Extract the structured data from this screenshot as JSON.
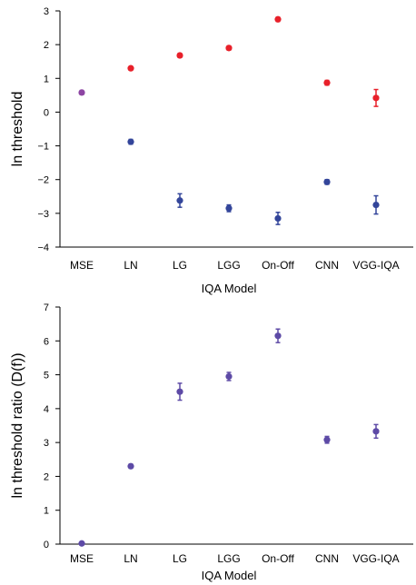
{
  "chart_data": [
    {
      "type": "scatter",
      "categories": [
        "MSE",
        "LN",
        "LG",
        "LGG",
        "On-Off",
        "CNN",
        "VGG-IQA"
      ],
      "xlabel": "IQA Model",
      "ylabel": "ln threshold",
      "ylim": [
        -4,
        3
      ],
      "yticks": [
        3,
        2,
        1,
        0,
        -1,
        -2,
        -3,
        -4
      ],
      "grid": false,
      "series": [
        {
          "color": "#e8202a",
          "points": [
            {
              "category": "LN",
              "value": 1.3,
              "err": 0.05
            },
            {
              "category": "LG",
              "value": 1.68,
              "err": 0.06
            },
            {
              "category": "LGG",
              "value": 1.9,
              "err": 0.06
            },
            {
              "category": "On-Off",
              "value": 2.75,
              "err": 0.06
            },
            {
              "category": "CNN",
              "value": 0.87,
              "err": 0.07
            },
            {
              "category": "VGG-IQA",
              "value": 0.42,
              "err": 0.25
            }
          ]
        },
        {
          "color": "#33459a",
          "points": [
            {
              "category": "LN",
              "value": -0.88,
              "err": 0.07
            },
            {
              "category": "LG",
              "value": -2.62,
              "err": 0.2
            },
            {
              "category": "LGG",
              "value": -2.85,
              "err": 0.1
            },
            {
              "category": "On-Off",
              "value": -3.15,
              "err": 0.18
            },
            {
              "category": "CNN",
              "value": -2.07,
              "err": 0.07
            },
            {
              "category": "VGG-IQA",
              "value": -2.75,
              "err": 0.27
            }
          ]
        },
        {
          "color": "#8d45a3",
          "points": [
            {
              "category": "MSE",
              "value": 0.58,
              "err": 0.06
            }
          ]
        }
      ]
    },
    {
      "type": "scatter",
      "categories": [
        "MSE",
        "LN",
        "LG",
        "LGG",
        "On-Off",
        "CNN",
        "VGG-IQA"
      ],
      "xlabel": "IQA Model",
      "ylabel": "ln threshold ratio (D(f))",
      "ylim": [
        0,
        7
      ],
      "yticks": [
        7,
        6,
        5,
        4,
        3,
        2,
        1,
        0
      ],
      "grid": false,
      "series": [
        {
          "color": "#5d4aa6",
          "points": [
            {
              "category": "MSE",
              "value": 0.02,
              "err": 0.03
            },
            {
              "category": "LN",
              "value": 2.3,
              "err": 0.06
            },
            {
              "category": "LG",
              "value": 4.5,
              "err": 0.25
            },
            {
              "category": "LGG",
              "value": 4.95,
              "err": 0.12
            },
            {
              "category": "On-Off",
              "value": 6.15,
              "err": 0.2
            },
            {
              "category": "CNN",
              "value": 3.08,
              "err": 0.1
            },
            {
              "category": "VGG-IQA",
              "value": 3.33,
              "err": 0.2
            }
          ]
        }
      ]
    }
  ]
}
